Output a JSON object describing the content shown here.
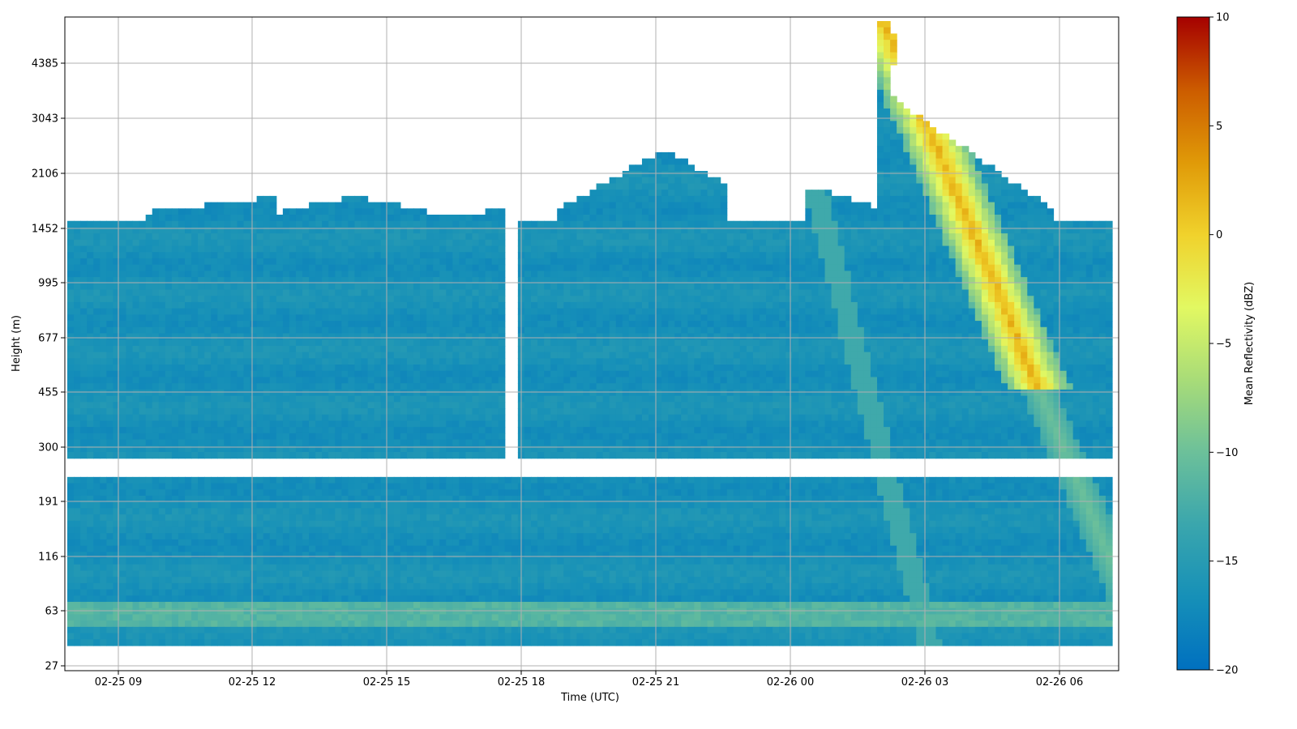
{
  "chart_data": {
    "type": "heatmap",
    "title": "",
    "xlabel": "Time (UTC)",
    "ylabel": "Height (m)",
    "x_tick_labels": [
      "02-25 09",
      "02-25 12",
      "02-25 15",
      "02-25 18",
      "02-25 21",
      "02-26 00",
      "02-26 03",
      "02-26 06"
    ],
    "y_tick_labels": [
      "27",
      "63",
      "116",
      "191",
      "300",
      "455",
      "677",
      "995",
      "1452",
      "2106",
      "3043",
      "4385"
    ],
    "x_range": [
      "02-25 07:52",
      "02-26 07:18"
    ],
    "y_range_m": [
      27,
      5300
    ],
    "y_scale": "non-uniform (tick labels equally spaced)",
    "grid": true,
    "colorbar": {
      "label": "Mean Reflectivity (dBZ)",
      "min": -20,
      "max": 10,
      "ticks": [
        10,
        5,
        0,
        -5,
        -10,
        -15,
        -20
      ],
      "colormap": [
        "#0070c0",
        "#1690b8",
        "#3aa6ad",
        "#6cc09a",
        "#a8dc78",
        "#e2f862",
        "#f0d22c",
        "#e09a08",
        "#cc5c00",
        "#a50000"
      ]
    },
    "background_reflectivity_dbz": -16.5,
    "features": [
      {
        "name": "near-surface layer",
        "height_m": 63,
        "reflectivity_dbz": -11
      },
      {
        "name": "fall streak",
        "start": "02-26 01:50",
        "start_height_m": 5300,
        "end": "02-26 06:00",
        "end_height_m": 455,
        "peak_reflectivity_dbz": 2
      }
    ]
  }
}
